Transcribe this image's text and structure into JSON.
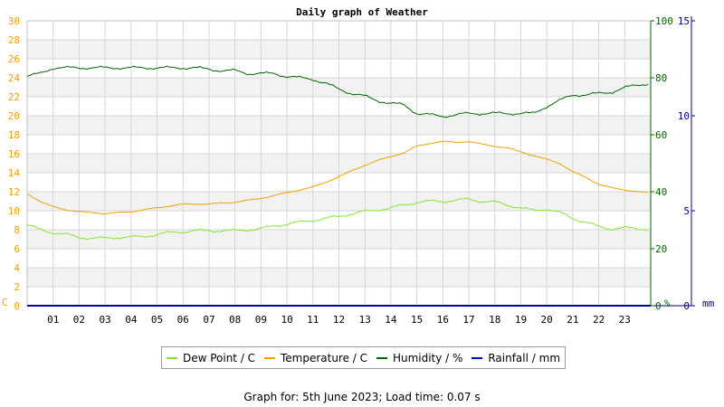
{
  "footer": {
    "prefix": "Graph for: ",
    "date": "5th June 2023",
    "separator": "; Load time: ",
    "load_time": "0.07 s"
  },
  "chart_data": {
    "type": "line",
    "title": "Daily graph of Weather",
    "x": {
      "min": 0,
      "max": 24,
      "ticks": [
        "01",
        "02",
        "03",
        "04",
        "05",
        "06",
        "07",
        "08",
        "09",
        "10",
        "11",
        "12",
        "13",
        "14",
        "15",
        "16",
        "17",
        "18",
        "19",
        "20",
        "21",
        "22",
        "23"
      ]
    },
    "axes": {
      "left": {
        "unit_label": "C",
        "min": 0,
        "max": 30,
        "ticks": [
          0,
          2,
          4,
          6,
          8,
          10,
          12,
          14,
          16,
          18,
          20,
          22,
          24,
          26,
          28,
          30
        ],
        "color": "#f0a000"
      },
      "humidity": {
        "unit_label": "%",
        "min": 0,
        "max": 100,
        "ticks": [
          0,
          20,
          40,
          60,
          80,
          100
        ],
        "color": "#006400"
      },
      "rain": {
        "unit_label": "mm",
        "min": 0,
        "max": 15,
        "ticks": [
          0,
          5,
          10,
          15
        ],
        "color": "#000080"
      }
    },
    "grid": true,
    "legend_placement": "bottom",
    "series": [
      {
        "name": "Dew Point / C",
        "axis": "left",
        "color": "#80e830",
        "x": [
          0,
          0.5,
          1,
          1.5,
          2,
          2.5,
          3,
          3.5,
          4,
          4.5,
          5,
          5.5,
          6,
          6.5,
          7,
          7.5,
          8,
          8.5,
          9,
          9.5,
          10,
          10.5,
          11,
          11.5,
          12,
          12.5,
          13,
          13.5,
          14,
          14.5,
          15,
          15.5,
          16,
          16.5,
          17,
          17.5,
          18,
          18.5,
          19,
          19.5,
          20,
          20.5,
          21,
          21.5,
          22,
          22.5,
          23,
          23.5,
          23.9
        ],
        "y": [
          8.5,
          8.0,
          7.7,
          7.5,
          7.2,
          7.1,
          7.1,
          7.2,
          7.2,
          7.3,
          7.5,
          7.7,
          7.8,
          7.9,
          7.9,
          7.9,
          7.9,
          8.0,
          8.1,
          8.4,
          8.6,
          8.8,
          9.0,
          9.2,
          9.4,
          9.7,
          9.9,
          10.1,
          10.3,
          10.6,
          10.9,
          11.0,
          11.0,
          11.1,
          11.2,
          11.0,
          10.9,
          10.6,
          10.3,
          10.0,
          10.2,
          9.8,
          9.2,
          8.8,
          8.3,
          8.1,
          8.2,
          8.1,
          8.1
        ]
      },
      {
        "name": "Temperature / C",
        "axis": "left",
        "color": "#f0a000",
        "x": [
          0,
          0.5,
          1,
          1.5,
          2,
          2.5,
          3,
          3.5,
          4,
          4.5,
          5,
          5.5,
          6,
          6.5,
          7,
          7.5,
          8,
          8.5,
          9,
          9.5,
          10,
          10.5,
          11,
          11.5,
          12,
          12.5,
          13,
          13.5,
          14,
          14.5,
          15,
          15.5,
          16,
          16.5,
          17,
          17.5,
          18,
          18.5,
          19,
          19.5,
          20,
          20.5,
          21,
          21.5,
          22,
          22.5,
          23,
          23.5,
          23.9
        ],
        "y": [
          11.8,
          11.0,
          10.4,
          10.1,
          9.9,
          9.8,
          9.7,
          9.8,
          9.9,
          10.1,
          10.3,
          10.5,
          10.7,
          10.7,
          10.7,
          10.8,
          10.9,
          11.1,
          11.3,
          11.6,
          11.9,
          12.2,
          12.5,
          13.0,
          13.6,
          14.2,
          14.8,
          15.3,
          15.7,
          16.1,
          16.8,
          17.1,
          17.3,
          17.2,
          17.3,
          17.0,
          16.8,
          16.6,
          16.2,
          15.8,
          15.4,
          15.0,
          14.1,
          13.5,
          12.8,
          12.4,
          12.2,
          12.0,
          11.9
        ]
      },
      {
        "name": "Humidity / %",
        "axis": "humidity",
        "color": "#006400",
        "x": [
          0,
          0.5,
          1,
          1.5,
          2,
          2.5,
          3,
          3.5,
          4,
          4.5,
          5,
          5.5,
          6,
          6.5,
          7,
          7.5,
          8,
          8.5,
          9,
          9.5,
          10,
          10.5,
          11,
          11.5,
          12,
          12.5,
          13,
          13.5,
          14,
          14.5,
          15,
          15.5,
          16,
          16.5,
          17,
          17.5,
          18,
          18.5,
          19,
          19.5,
          20,
          20.5,
          21,
          21.5,
          22,
          22.5,
          23,
          23.5,
          23.9
        ],
        "y": [
          80.5,
          81.5,
          83.5,
          83.5,
          83.5,
          83.5,
          83.5,
          83.5,
          83.5,
          83.5,
          83.5,
          83.5,
          83.5,
          83.5,
          83.0,
          82.5,
          82.5,
          81.5,
          81.5,
          81.5,
          80.5,
          80.0,
          79.5,
          78.0,
          76.0,
          74.5,
          73.5,
          72.0,
          71.0,
          70.5,
          67.5,
          67.0,
          66.5,
          67.0,
          67.5,
          67.5,
          67.5,
          67.5,
          67.5,
          67.5,
          70.0,
          72.0,
          74.0,
          74.0,
          74.5,
          75.0,
          76.5,
          77.5,
          78.0
        ]
      },
      {
        "name": "Rainfall / mm",
        "axis": "rain",
        "color": "#0000cc",
        "x": [
          0,
          24
        ],
        "y": [
          0,
          0
        ]
      }
    ]
  }
}
